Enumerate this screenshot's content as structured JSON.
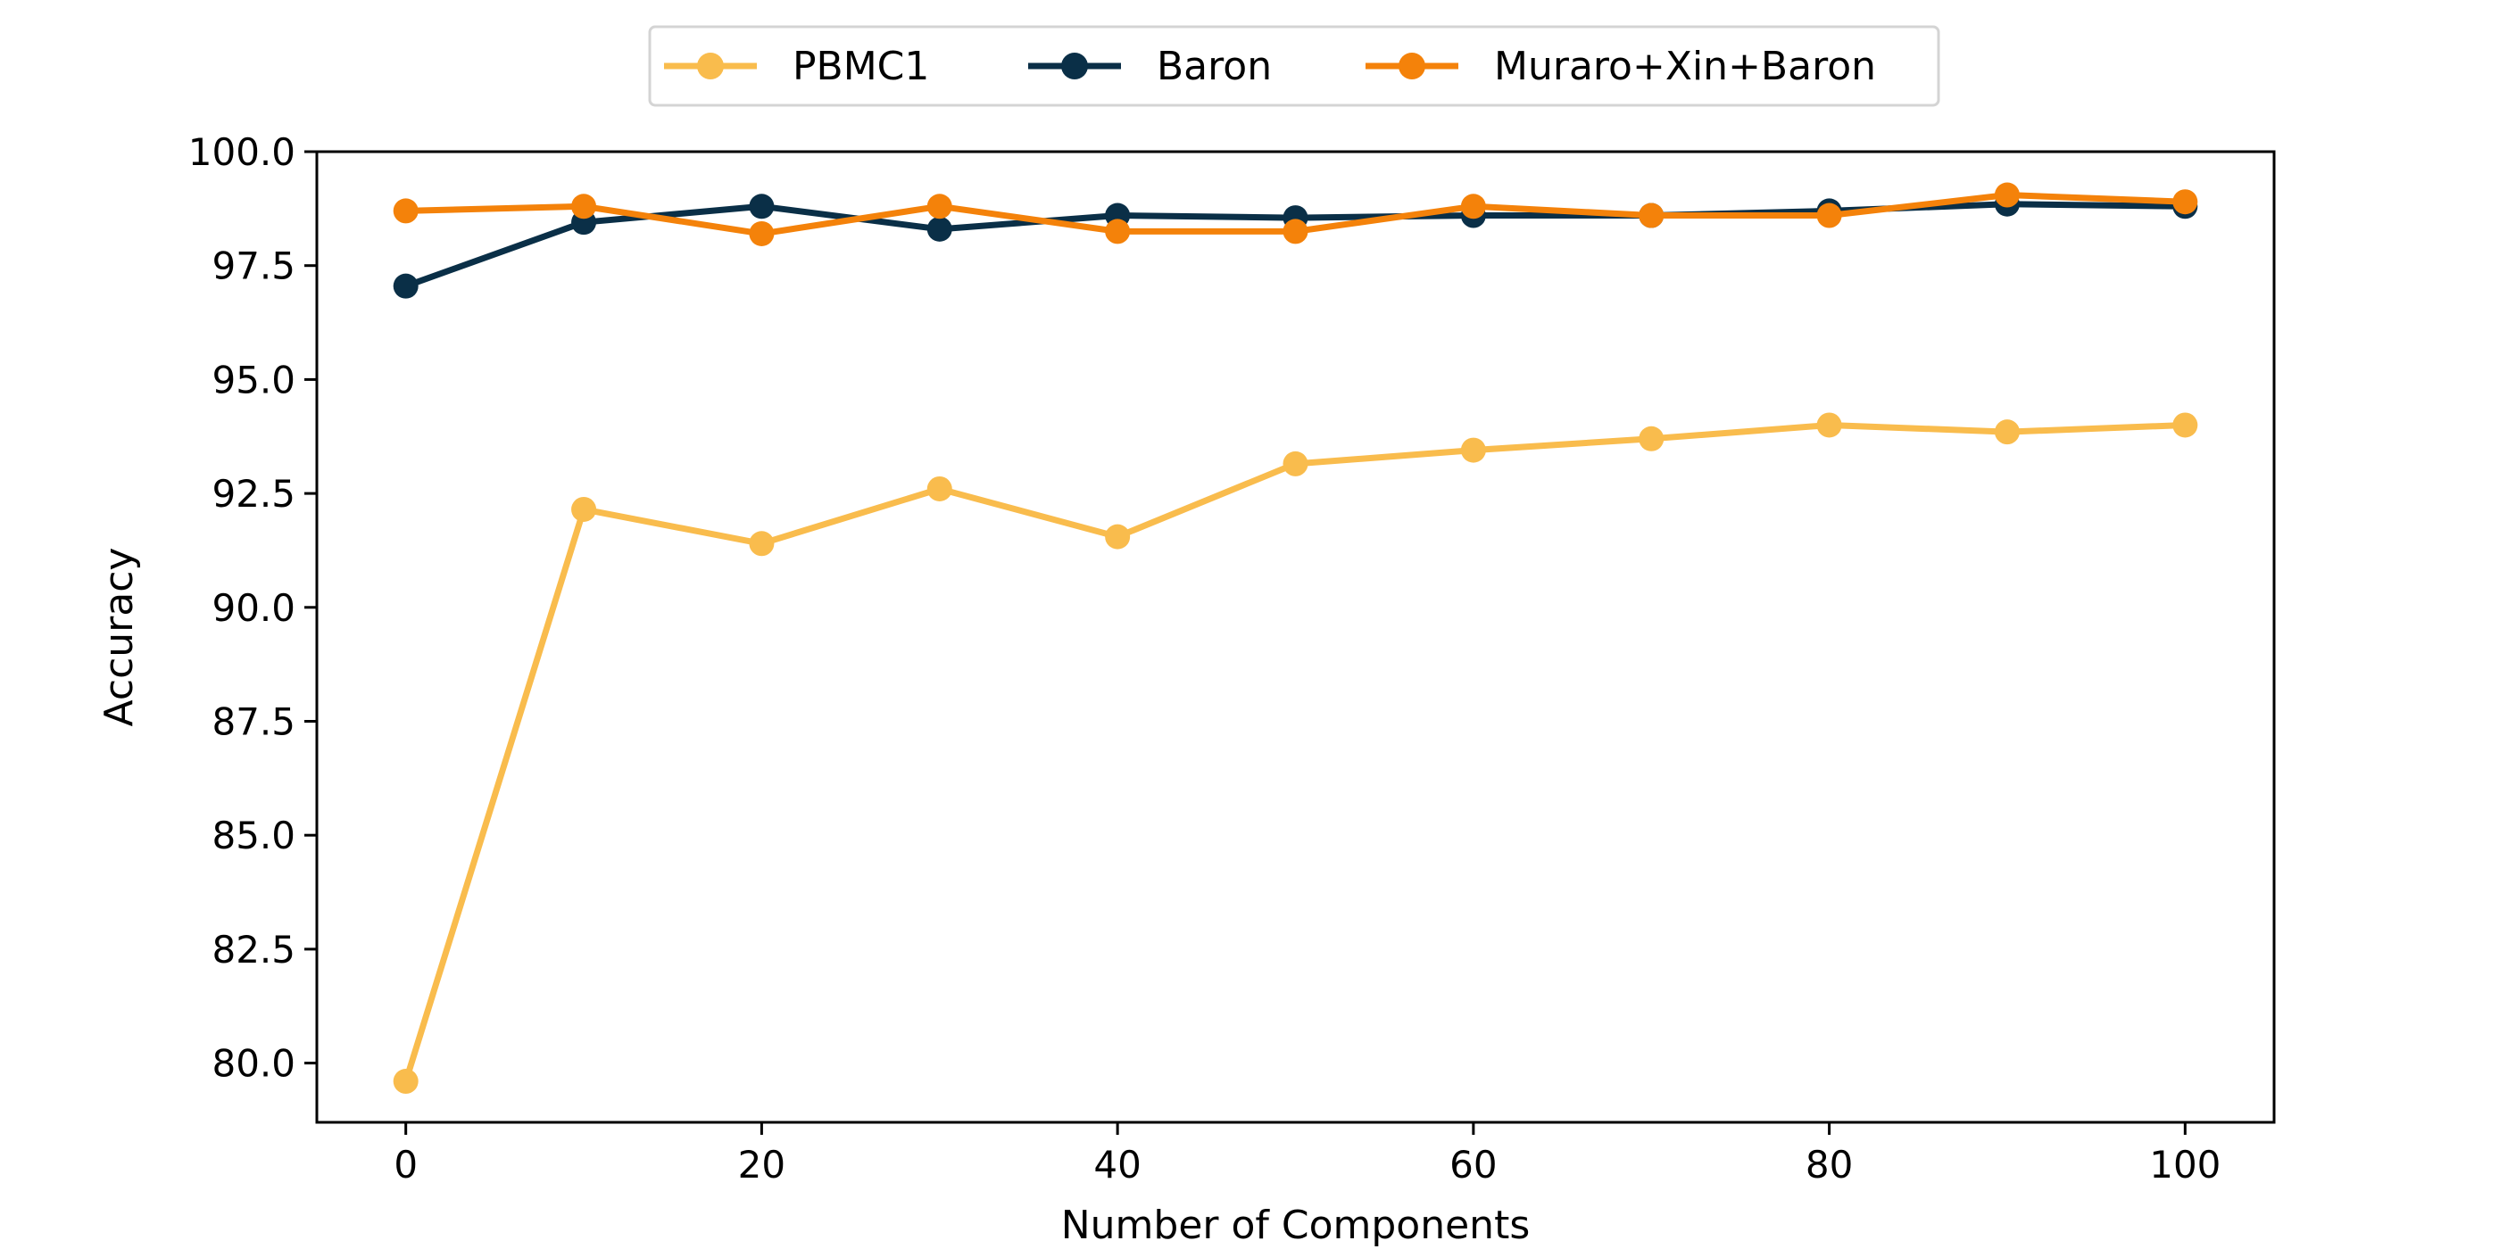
{
  "chart_data": {
    "type": "line",
    "title": "",
    "xlabel": "Number of Components",
    "ylabel": "Accuracy",
    "xlim": [
      -5,
      105
    ],
    "ylim": [
      78.7,
      100.0
    ],
    "x_ticks": [
      "0",
      "20",
      "40",
      "60",
      "80",
      "100"
    ],
    "y_ticks": [
      "80.0",
      "82.5",
      "85.0",
      "87.5",
      "90.0",
      "92.5",
      "95.0",
      "97.5",
      "100.0"
    ],
    "grid": false,
    "legend_position": "top-center",
    "x": [
      0,
      10,
      20,
      30,
      40,
      50,
      60,
      70,
      80,
      90,
      100
    ],
    "series": [
      {
        "name": "PBMC1",
        "color": "#f9bc4d",
        "values": [
          79.6,
          92.15,
          91.4,
          92.6,
          91.55,
          93.15,
          93.45,
          93.7,
          94.0,
          93.85,
          94.0
        ]
      },
      {
        "name": "Baron",
        "color": "#0a2f47",
        "values": [
          97.05,
          98.45,
          98.8,
          98.3,
          98.6,
          98.55,
          98.6,
          98.6,
          98.7,
          98.85,
          98.8
        ]
      },
      {
        "name": "Muraro+Xin+Baron",
        "color": "#f4820a",
        "values": [
          98.7,
          98.8,
          98.2,
          98.8,
          98.25,
          98.25,
          98.8,
          98.6,
          98.6,
          99.05,
          98.9
        ]
      }
    ]
  }
}
